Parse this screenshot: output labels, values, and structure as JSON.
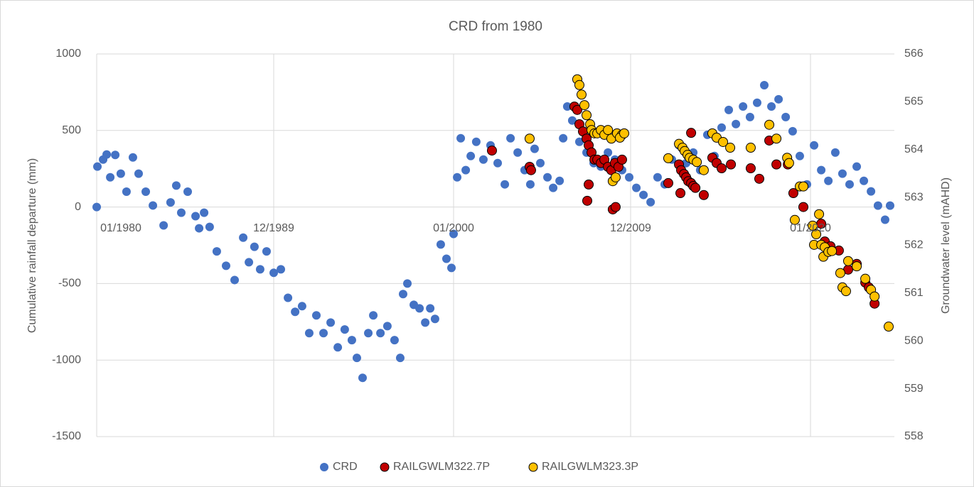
{
  "chart_data": {
    "type": "scatter",
    "title": "CRD from 1980",
    "ylabel": "Cumulative rainfall departure (mm)",
    "y2label": "Groundwater level (mAHD)",
    "xlim": [
      1980,
      2024.7
    ],
    "xticks": [
      {
        "value": 1980,
        "label": "01/1980"
      },
      {
        "value": 1989.92,
        "label": "12/1989"
      },
      {
        "value": 2000,
        "label": "01/2000"
      },
      {
        "value": 2009.92,
        "label": "12/2009"
      },
      {
        "value": 2020,
        "label": "01/2020"
      }
    ],
    "ylim": [
      -1500,
      1000
    ],
    "yticks": [
      -1500,
      -1000,
      -500,
      0,
      500,
      1000
    ],
    "y2lim": [
      558,
      566
    ],
    "y2ticks": [
      558,
      559,
      560,
      561,
      562,
      563,
      564,
      565,
      566
    ],
    "grid": true,
    "legend": "bottom",
    "series": [
      {
        "name": "CRD",
        "color": "#4472c4",
        "x": [
          1980.0,
          1980.04,
          1980.36,
          1980.56,
          1980.76,
          1981.04,
          1981.35,
          1981.67,
          1982.03,
          1982.35,
          1982.75,
          1983.15,
          1983.75,
          1984.14,
          1984.46,
          1984.74,
          1985.1,
          1985.54,
          1985.74,
          1986.02,
          1986.33,
          1986.73,
          1987.25,
          1987.73,
          1988.21,
          1988.53,
          1988.84,
          1989.16,
          1989.52,
          1989.92,
          1990.32,
          1990.72,
          1991.12,
          1991.51,
          1991.91,
          1992.31,
          1992.71,
          1993.11,
          1993.51,
          1993.9,
          1994.3,
          1994.58,
          1994.9,
          1995.22,
          1995.5,
          1995.9,
          1996.29,
          1996.69,
          1997.01,
          1997.17,
          1997.41,
          1997.77,
          1998.09,
          1998.41,
          1998.69,
          1998.96,
          1999.28,
          1999.6,
          1999.88,
          2000.0,
          2000.2,
          2000.4,
          2000.68,
          2000.96,
          2001.27,
          2001.67,
          2002.07,
          2002.47,
          2002.87,
          2003.19,
          2003.59,
          2003.98,
          2004.3,
          2004.54,
          2004.86,
          2005.26,
          2005.58,
          2005.94,
          2006.14,
          2006.37,
          2006.65,
          2007.05,
          2007.45,
          2007.85,
          2008.25,
          2008.65,
          2009.04,
          2009.44,
          2009.84,
          2010.24,
          2010.64,
          2011.04,
          2011.43,
          2011.83,
          2012.23,
          2012.63,
          2013.03,
          2013.43,
          2013.82,
          2014.22,
          2014.62,
          2015.02,
          2015.42,
          2015.82,
          2016.22,
          2016.61,
          2017.01,
          2017.41,
          2017.81,
          2018.21,
          2018.61,
          2019.0,
          2019.4,
          2019.8,
          2020.2,
          2020.6,
          2021.0,
          2021.39,
          2021.79,
          2022.19,
          2022.59,
          2022.99,
          2023.39,
          2023.78,
          2024.18,
          2024.46
        ],
        "values": [
          0,
          264,
          310,
          343,
          194,
          340,
          218,
          100,
          324,
          218,
          100,
          10,
          -120,
          30,
          140,
          -37,
          100,
          -60,
          -139,
          -37,
          -130,
          -290,
          -384,
          -477,
          -200,
          -361,
          -260,
          -407,
          -290,
          -430,
          -407,
          -593,
          -685,
          -648,
          -824,
          -708,
          -824,
          -755,
          -917,
          -800,
          -870,
          -986,
          -1116,
          -824,
          -708,
          -824,
          -778,
          -870,
          -986,
          -569,
          -500,
          -639,
          -662,
          -755,
          -662,
          -731,
          -245,
          -338,
          -398,
          -176,
          194,
          449,
          241,
          333,
          426,
          310,
          403,
          287,
          148,
          449,
          356,
          241,
          148,
          380,
          287,
          194,
          125,
          171,
          449,
          657,
          565,
          426,
          356,
          287,
          264,
          356,
          310,
          241,
          194,
          125,
          79,
          32,
          194,
          148,
          310,
          403,
          287,
          356,
          241,
          472,
          333,
          519,
          634,
          542,
          657,
          588,
          681,
          796,
          657,
          704,
          588,
          495,
          333,
          148,
          403,
          241,
          171,
          356,
          218,
          148,
          264,
          171,
          102,
          9,
          -83,
          9
        ]
      },
      {
        "name": "RAILGWLM322.7P",
        "color": "#c00000",
        "axis": "y2",
        "x": [
          2002.15,
          2004.26,
          2004.34,
          2006.77,
          2006.93,
          2007.05,
          2007.25,
          2007.45,
          2007.57,
          2007.73,
          2007.89,
          2008.05,
          2008.25,
          2008.45,
          2008.65,
          2008.84,
          2009.04,
          2009.24,
          2009.44,
          2007.57,
          2007.49,
          2008.92,
          2009.08,
          2012.03,
          2012.63,
          2012.75,
          2012.91,
          2013.03,
          2013.15,
          2013.31,
          2013.43,
          2013.55,
          2012.71,
          2013.31,
          2014.02,
          2014.5,
          2014.74,
          2015.02,
          2015.54,
          2016.65,
          2017.13,
          2017.69,
          2018.09,
          2018.73,
          2019.04,
          2019.6,
          2020.6,
          2020.8,
          2021.12,
          2021.59,
          2022.11,
          2022.59,
          2023.07,
          2023.27,
          2023.59
        ],
        "values": [
          563.98,
          563.64,
          563.57,
          564.9,
          564.83,
          564.53,
          564.38,
          564.23,
          564.09,
          563.94,
          563.79,
          563.79,
          563.72,
          563.79,
          563.64,
          563.57,
          563.72,
          563.64,
          563.79,
          563.27,
          562.93,
          562.75,
          562.8,
          563.3,
          563.69,
          563.57,
          563.49,
          563.42,
          563.34,
          563.3,
          563.24,
          563.2,
          563.09,
          564.35,
          563.05,
          563.83,
          563.72,
          563.61,
          563.69,
          563.61,
          563.39,
          564.19,
          563.69,
          563.69,
          563.09,
          562.8,
          562.45,
          562.08,
          561.98,
          561.89,
          561.49,
          561.61,
          561.22,
          561.12,
          560.78
        ]
      },
      {
        "name": "RAILGWLM323.3P",
        "color": "#ffc000",
        "axis": "y2",
        "x": [
          2004.26,
          2006.93,
          2007.05,
          2007.17,
          2007.33,
          2007.45,
          2007.65,
          2007.73,
          2007.89,
          2008.05,
          2008.25,
          2008.45,
          2008.65,
          2008.84,
          2009.16,
          2009.44,
          2008.92,
          2009.08,
          2009.32,
          2009.56,
          2012.03,
          2012.63,
          2012.83,
          2012.95,
          2013.11,
          2013.23,
          2013.43,
          2013.63,
          2014.02,
          2014.5,
          2014.74,
          2015.1,
          2015.5,
          2016.65,
          2017.69,
          2018.09,
          2018.69,
          2018.8,
          2019.12,
          2019.4,
          2019.6,
          2020.12,
          2020.32,
          2020.48,
          2020.2,
          2020.6,
          2020.72,
          2020.8,
          2021.0,
          2021.2,
          2021.67,
          2021.79,
          2021.99,
          2022.11,
          2022.59,
          2023.07,
          2023.39,
          2023.59,
          2024.38
        ],
        "values": [
          564.23,
          565.47,
          565.35,
          565.15,
          564.93,
          564.72,
          564.53,
          564.41,
          564.34,
          564.34,
          564.41,
          564.31,
          564.41,
          564.23,
          564.34,
          564.31,
          563.34,
          563.42,
          564.25,
          564.34,
          563.82,
          564.12,
          564.04,
          563.97,
          563.89,
          563.83,
          563.79,
          563.74,
          563.57,
          564.34,
          564.25,
          564.16,
          564.04,
          564.04,
          564.52,
          564.23,
          563.83,
          563.72,
          562.53,
          563.23,
          563.23,
          562.41,
          562.23,
          562.65,
          562.01,
          562.01,
          561.76,
          561.96,
          561.86,
          561.88,
          561.42,
          561.12,
          561.04,
          561.67,
          561.56,
          561.3,
          561.07,
          560.93,
          560.3
        ]
      }
    ]
  }
}
